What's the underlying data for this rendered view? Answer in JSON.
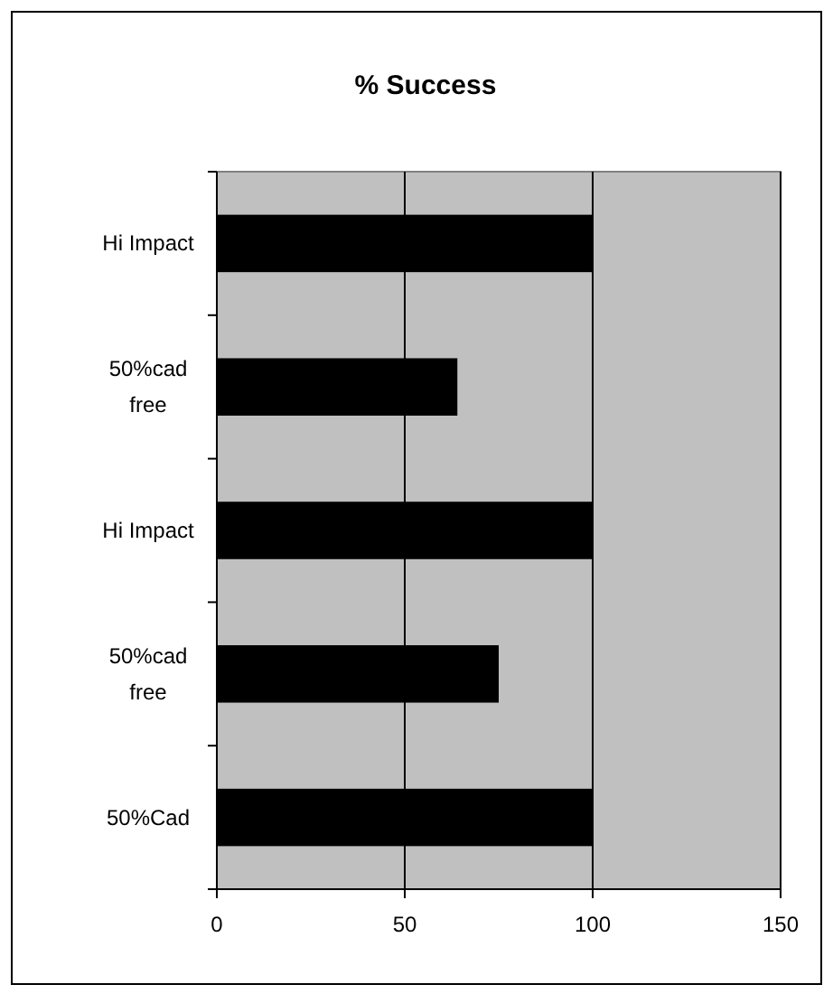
{
  "chart_data": {
    "type": "bar",
    "orientation": "horizontal",
    "title": "% Success",
    "categories": [
      "Hi Impact",
      "50%cad free",
      "Hi Impact",
      "50%cad free",
      "50%Cad"
    ],
    "values": [
      100,
      64,
      100,
      75,
      100
    ],
    "color": "#000000",
    "xlim": [
      0,
      150
    ],
    "xticks": [
      0,
      50,
      100,
      150
    ],
    "grid": "x"
  }
}
